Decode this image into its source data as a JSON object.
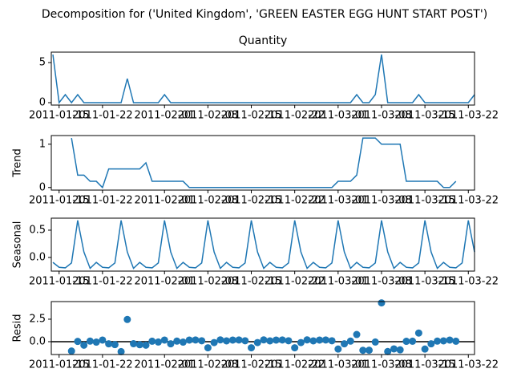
{
  "title": "Decomposition for ('United Kingdom', 'GREEN EASTER EGG HUNT START POST')",
  "x": [
    "2011-01-14",
    "2011-01-15",
    "2011-01-16",
    "2011-01-17",
    "2011-01-18",
    "2011-01-19",
    "2011-01-20",
    "2011-01-21",
    "2011-01-22",
    "2011-01-23",
    "2011-01-24",
    "2011-01-25",
    "2011-01-26",
    "2011-01-27",
    "2011-01-28",
    "2011-01-29",
    "2011-01-30",
    "2011-01-31",
    "2011-02-01",
    "2011-02-02",
    "2011-02-03",
    "2011-02-04",
    "2011-02-05",
    "2011-02-06",
    "2011-02-07",
    "2011-02-08",
    "2011-02-09",
    "2011-02-10",
    "2011-02-11",
    "2011-02-12",
    "2011-02-13",
    "2011-02-14",
    "2011-02-15",
    "2011-02-16",
    "2011-02-17",
    "2011-02-18",
    "2011-02-19",
    "2011-02-20",
    "2011-02-21",
    "2011-02-22",
    "2011-02-23",
    "2011-02-24",
    "2011-02-25",
    "2011-02-26",
    "2011-02-27",
    "2011-02-28",
    "2011-03-01",
    "2011-03-02",
    "2011-03-03",
    "2011-03-04",
    "2011-03-05",
    "2011-03-06",
    "2011-03-07",
    "2011-03-08",
    "2011-03-09",
    "2011-03-10",
    "2011-03-11",
    "2011-03-12",
    "2011-03-13",
    "2011-03-14",
    "2011-03-15",
    "2011-03-16",
    "2011-03-17",
    "2011-03-18",
    "2011-03-19",
    "2011-03-20",
    "2011-03-21",
    "2011-03-22",
    "2011-03-23"
  ],
  "xlim": [
    "2011-01-14",
    "2011-03-23"
  ],
  "xticks": [
    "2011-01-15",
    "2011-01-22",
    "2011-02-01",
    "2011-02-08",
    "2011-02-15",
    "2011-02-22",
    "2011-03-01",
    "2011-03-08",
    "2011-03-15",
    "2011-03-22"
  ],
  "chart_data": [
    {
      "type": "line",
      "title": "Quantity",
      "color": "#1f77b4",
      "ylim": [
        -0.3,
        6.3
      ],
      "yticks": [
        0,
        5
      ],
      "values": [
        6,
        0,
        1,
        0,
        1,
        0,
        0,
        0,
        0,
        0,
        0,
        0,
        3,
        0,
        0,
        0,
        0,
        0,
        1,
        0,
        0,
        0,
        0,
        0,
        0,
        0,
        0,
        0,
        0,
        0,
        0,
        0,
        0,
        0,
        0,
        0,
        0,
        0,
        0,
        0,
        0,
        0,
        0,
        0,
        0,
        0,
        0,
        0,
        0,
        1,
        0,
        0,
        1,
        6,
        0,
        0,
        0,
        0,
        0,
        1,
        0,
        0,
        0,
        0,
        0,
        0,
        0,
        0,
        1
      ]
    },
    {
      "type": "line",
      "ylabel": "Trend",
      "color": "#1f77b4",
      "ylim": [
        -0.06,
        1.2
      ],
      "yticks": [
        0,
        1
      ],
      "values": [
        null,
        null,
        null,
        1.143,
        0.286,
        0.286,
        0.143,
        0.143,
        0,
        0.429,
        0.429,
        0.429,
        0.429,
        0.429,
        0.429,
        0.571,
        0.143,
        0.143,
        0.143,
        0.143,
        0.143,
        0.143,
        0,
        0,
        0,
        0,
        0,
        0,
        0,
        0,
        0,
        0,
        0,
        0,
        0,
        0,
        0,
        0,
        0,
        0,
        0,
        0,
        0,
        0,
        0,
        0,
        0.143,
        0.143,
        0.143,
        0.286,
        1.143,
        1.143,
        1.143,
        1,
        1,
        1,
        1,
        0.143,
        0.143,
        0.143,
        0.143,
        0.143,
        0.143,
        0,
        0,
        0.143,
        null,
        null,
        null
      ]
    },
    {
      "type": "line",
      "ylabel": "Seasonal",
      "color": "#1f77b4",
      "ylim": [
        -0.25,
        0.72
      ],
      "yticks": [
        {
          "value": 0,
          "label": "0.0"
        },
        {
          "value": 0.5,
          "label": "0.5"
        }
      ],
      "values": [
        -0.09,
        -0.18,
        -0.19,
        -0.1,
        0.68,
        0.1,
        -0.2,
        -0.09,
        -0.18,
        -0.19,
        -0.1,
        0.68,
        0.1,
        -0.2,
        -0.09,
        -0.18,
        -0.19,
        -0.1,
        0.68,
        0.1,
        -0.2,
        -0.09,
        -0.18,
        -0.19,
        -0.1,
        0.68,
        0.1,
        -0.2,
        -0.09,
        -0.18,
        -0.19,
        -0.1,
        0.68,
        0.1,
        -0.2,
        -0.09,
        -0.18,
        -0.19,
        -0.1,
        0.68,
        0.1,
        -0.2,
        -0.09,
        -0.18,
        -0.19,
        -0.1,
        0.68,
        0.1,
        -0.2,
        -0.09,
        -0.18,
        -0.19,
        -0.1,
        0.68,
        0.1,
        -0.2,
        -0.09,
        -0.18,
        -0.19,
        -0.1,
        0.68,
        0.1,
        -0.2,
        -0.09,
        -0.18,
        -0.19,
        -0.1,
        0.68,
        0.1
      ]
    },
    {
      "type": "scatter",
      "ylabel": "Resid",
      "color": "#1f77b4",
      "ylim": [
        -1.43,
        4.46
      ],
      "yticks": [
        {
          "value": 0,
          "label": "0.0"
        },
        {
          "value": 2.5,
          "label": "2.5"
        }
      ],
      "values": [
        null,
        null,
        null,
        -1.04,
        0.03,
        -0.39,
        0.06,
        -0.05,
        0.18,
        -0.24,
        -0.33,
        -1.11,
        2.47,
        -0.23,
        -0.34,
        -0.39,
        0.05,
        -0.04,
        0.18,
        -0.24,
        0.06,
        -0.05,
        0.18,
        0.19,
        0.1,
        -0.68,
        -0.1,
        0.2,
        0.09,
        0.18,
        0.19,
        0.1,
        -0.68,
        -0.1,
        0.2,
        0.09,
        0.18,
        0.19,
        0.1,
        -0.68,
        -0.1,
        0.2,
        0.09,
        0.18,
        0.19,
        0.1,
        -0.82,
        -0.24,
        0.06,
        0.8,
        -0.96,
        -0.95,
        -0.04,
        4.32,
        -1.1,
        -0.8,
        -0.91,
        0.04,
        0.05,
        0.96,
        -0.82,
        -0.24,
        0.06,
        0.09,
        0.18,
        0.05,
        null,
        null,
        null
      ]
    }
  ]
}
